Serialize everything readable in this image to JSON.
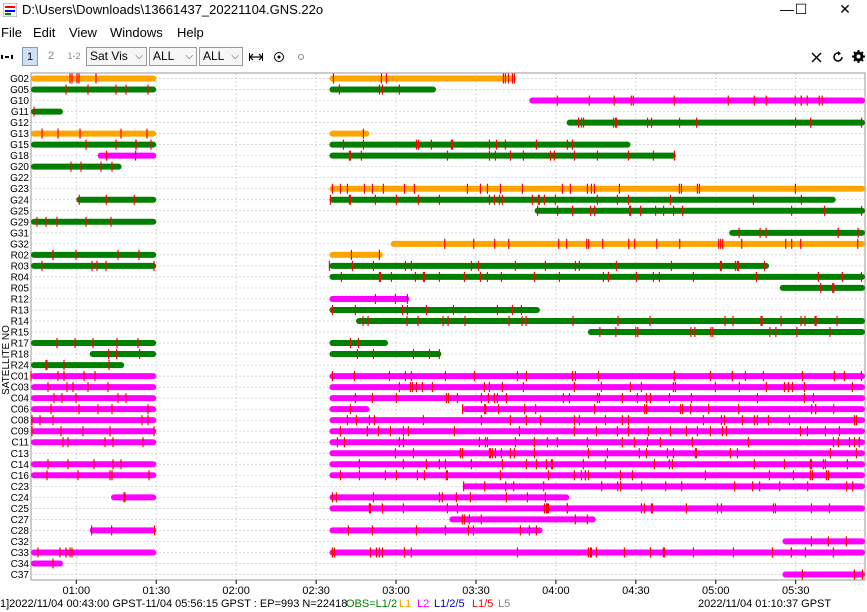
{
  "window": {
    "title": "D:\\Users\\Downloads\\13661437_20221104.GNS.22o",
    "minimize": "—",
    "maximize": "☐",
    "close": "✕"
  },
  "menu": [
    "File",
    "Edit",
    "View",
    "Windows",
    "Help"
  ],
  "toolbar": {
    "btn1": "1",
    "btn2": "2",
    "btn12": "1-2",
    "plot_type": "Sat Vis",
    "filter1": "ALL",
    "filter2": "ALL",
    "icons": [
      "pan-icon",
      "expand-icon",
      "center-icon",
      "point-icon",
      "close-icon",
      "refresh-icon",
      "gear-icon"
    ]
  },
  "colors": {
    "green": "#008000",
    "orange": "#FFA500",
    "magenta": "#FF00FF",
    "teal": "#008080",
    "red": "#FF0000",
    "grid": "#c8c8c8"
  },
  "chart_data": {
    "type": "timeline",
    "ylabel": "SATELLITE NO",
    "xticks": [
      "01:00",
      "01:30",
      "02:00",
      "02:30",
      "03:00",
      "03:30",
      "04:00",
      "04:30",
      "05:00",
      "05:30"
    ],
    "xlim": [
      "00:43",
      "05:56"
    ],
    "satellites": [
      "G02",
      "G05",
      "G10",
      "G11",
      "G12",
      "G13",
      "G15",
      "G18",
      "G20",
      "G22",
      "G23",
      "G24",
      "G25",
      "G29",
      "G31",
      "G32",
      "R02",
      "R03",
      "R04",
      "R05",
      "R12",
      "R13",
      "R14",
      "R15",
      "R17",
      "R18",
      "R24",
      "C01",
      "C03",
      "C04",
      "C06",
      "C08",
      "C09",
      "C11",
      "C13",
      "C14",
      "C16",
      "C23",
      "C24",
      "C25",
      "C27",
      "C28",
      "C32",
      "C33",
      "C34",
      "C37"
    ],
    "legend": [
      "OBS=L1/2",
      "L1",
      "L2",
      "L1/2/5",
      "L1/5",
      "L5"
    ]
  },
  "status": {
    "text1": "1]2022/11/04 00:43:00 GPST-11/04 05:56:15 GPST : EP=993 N=22418",
    "obs": "OBS=L1/2",
    "l1": "L1",
    "l2": "L2",
    "l125": "L1/2/5",
    "l15": "L1/5",
    "l5": "L5",
    "time": "2022/11/04 01:10:37 GPST"
  }
}
